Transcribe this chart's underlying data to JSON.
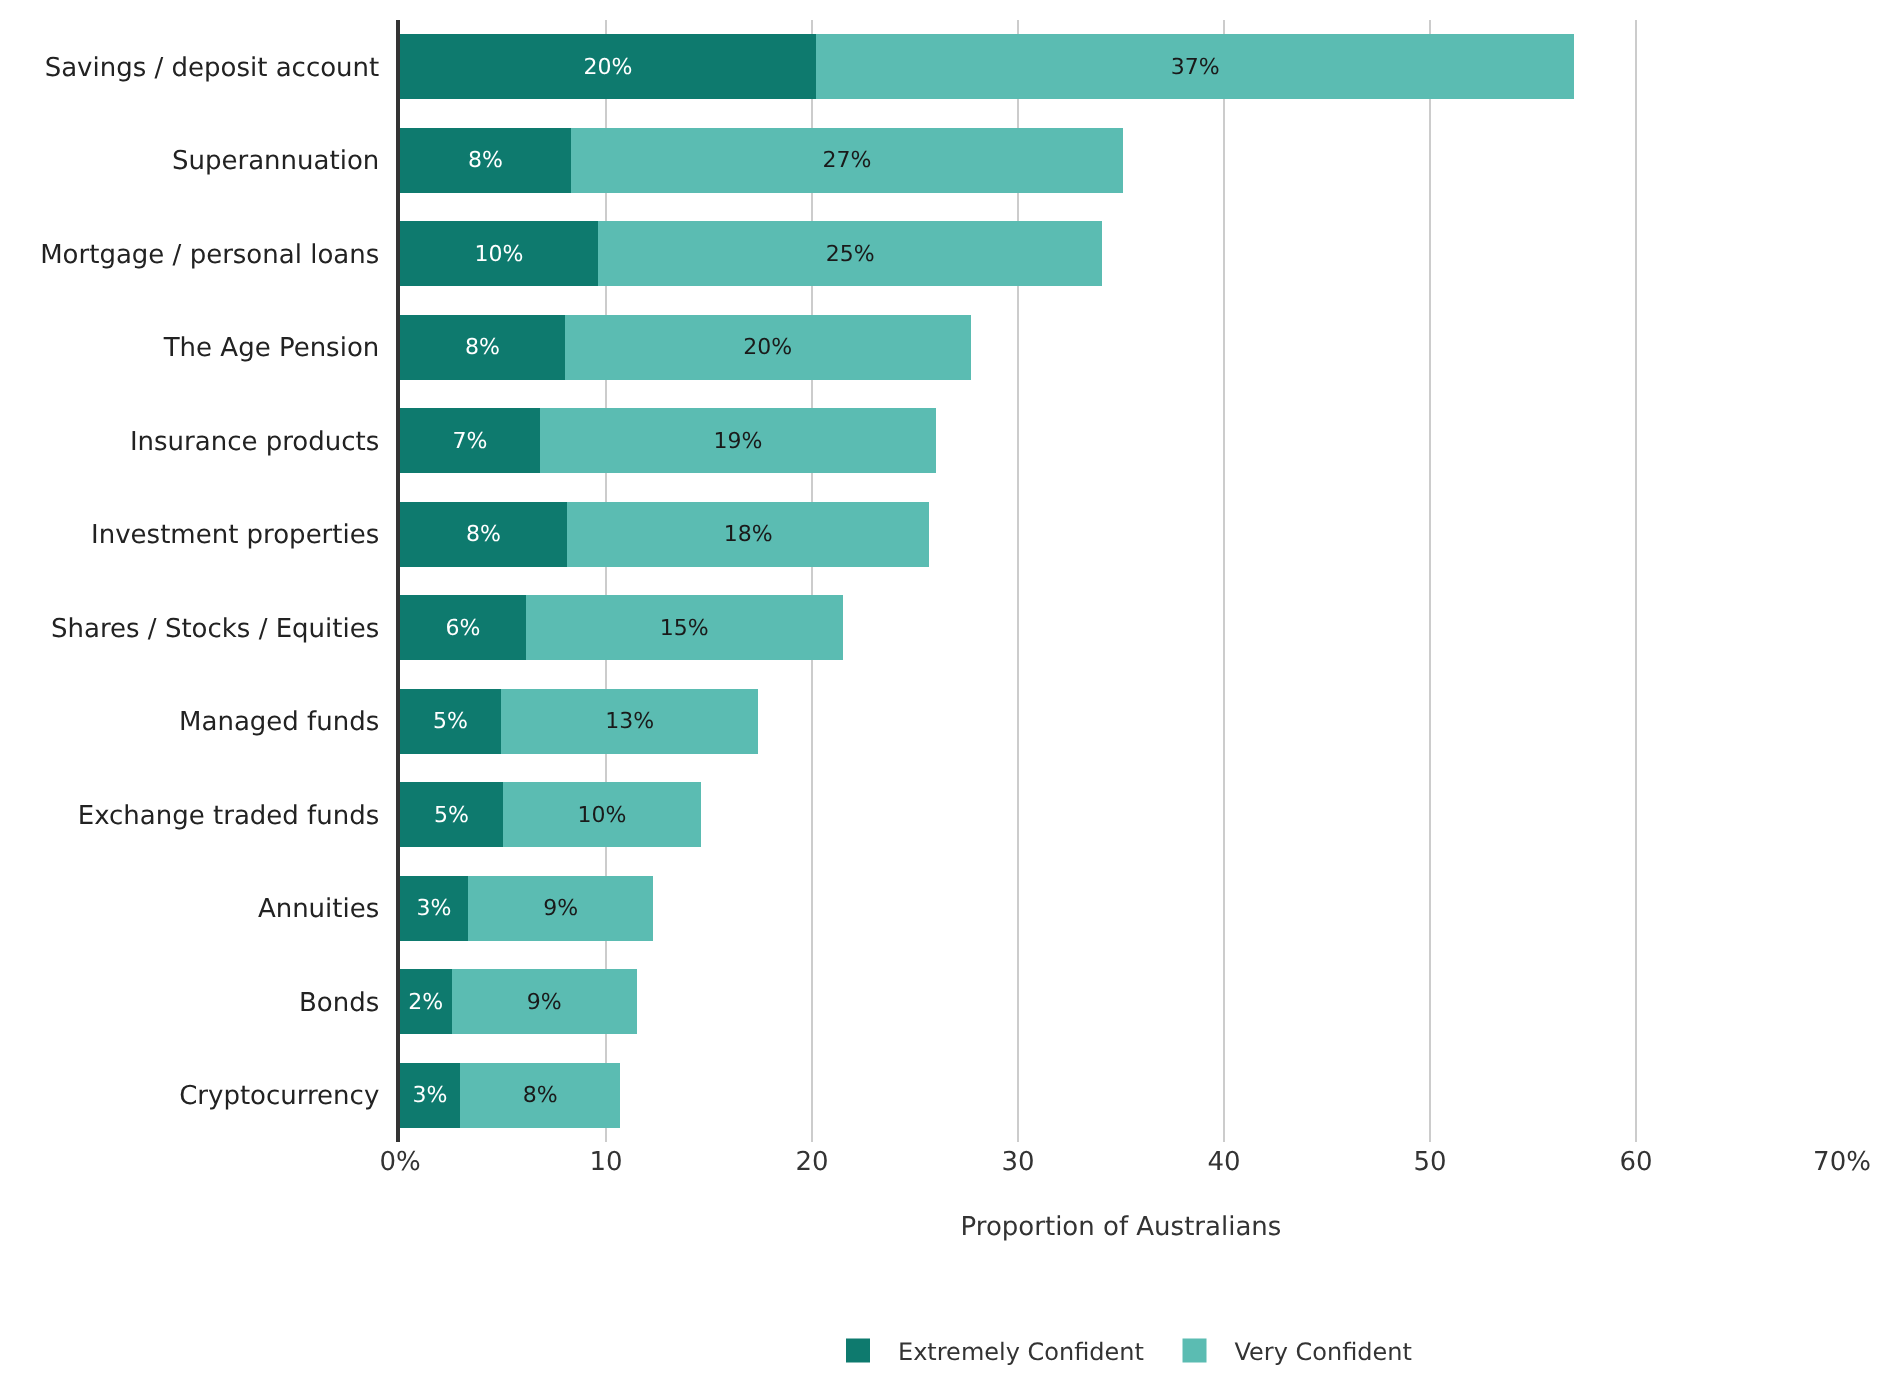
{
  "chart_data": {
    "type": "bar",
    "orientation": "horizontal",
    "stacked": true,
    "xlabel": "Proportion of Australians",
    "categories": [
      "Savings / deposit account",
      "Superannuation",
      "Mortgage / personal loans",
      "The Age Pension",
      "Insurance products",
      "Investment properties",
      "Shares / Stocks / Equities",
      "Managed funds",
      "Exchange traded funds",
      "Annuities",
      "Bonds",
      "Cryptocurrency"
    ],
    "series": [
      {
        "name": "Extremely Confident",
        "color": "#0e7a6e",
        "values": [
          20.2,
          8.3,
          9.6,
          8.0,
          6.8,
          8.1,
          6.1,
          4.9,
          5.0,
          3.3,
          2.5,
          2.9
        ],
        "value_labels": [
          "20%",
          "8%",
          "10%",
          "8%",
          "7%",
          "8%",
          "6%",
          "5%",
          "5%",
          "3%",
          "2%",
          "3%"
        ]
      },
      {
        "name": "Very Confident",
        "color": "#5bbcb2",
        "values": [
          36.8,
          26.8,
          24.5,
          19.7,
          19.2,
          17.6,
          15.4,
          12.5,
          9.6,
          9.0,
          9.0,
          7.8
        ],
        "value_labels": [
          "37%",
          "27%",
          "25%",
          "20%",
          "19%",
          "18%",
          "15%",
          "13%",
          "10%",
          "9%",
          "9%",
          "8%"
        ]
      }
    ],
    "xlim": [
      0,
      70
    ],
    "xticks": [
      {
        "value": 0,
        "label": "0%"
      },
      10,
      20,
      30,
      40,
      50,
      60,
      {
        "value": 70,
        "label": "70%"
      }
    ],
    "grid": "x",
    "legend": "bottom"
  }
}
